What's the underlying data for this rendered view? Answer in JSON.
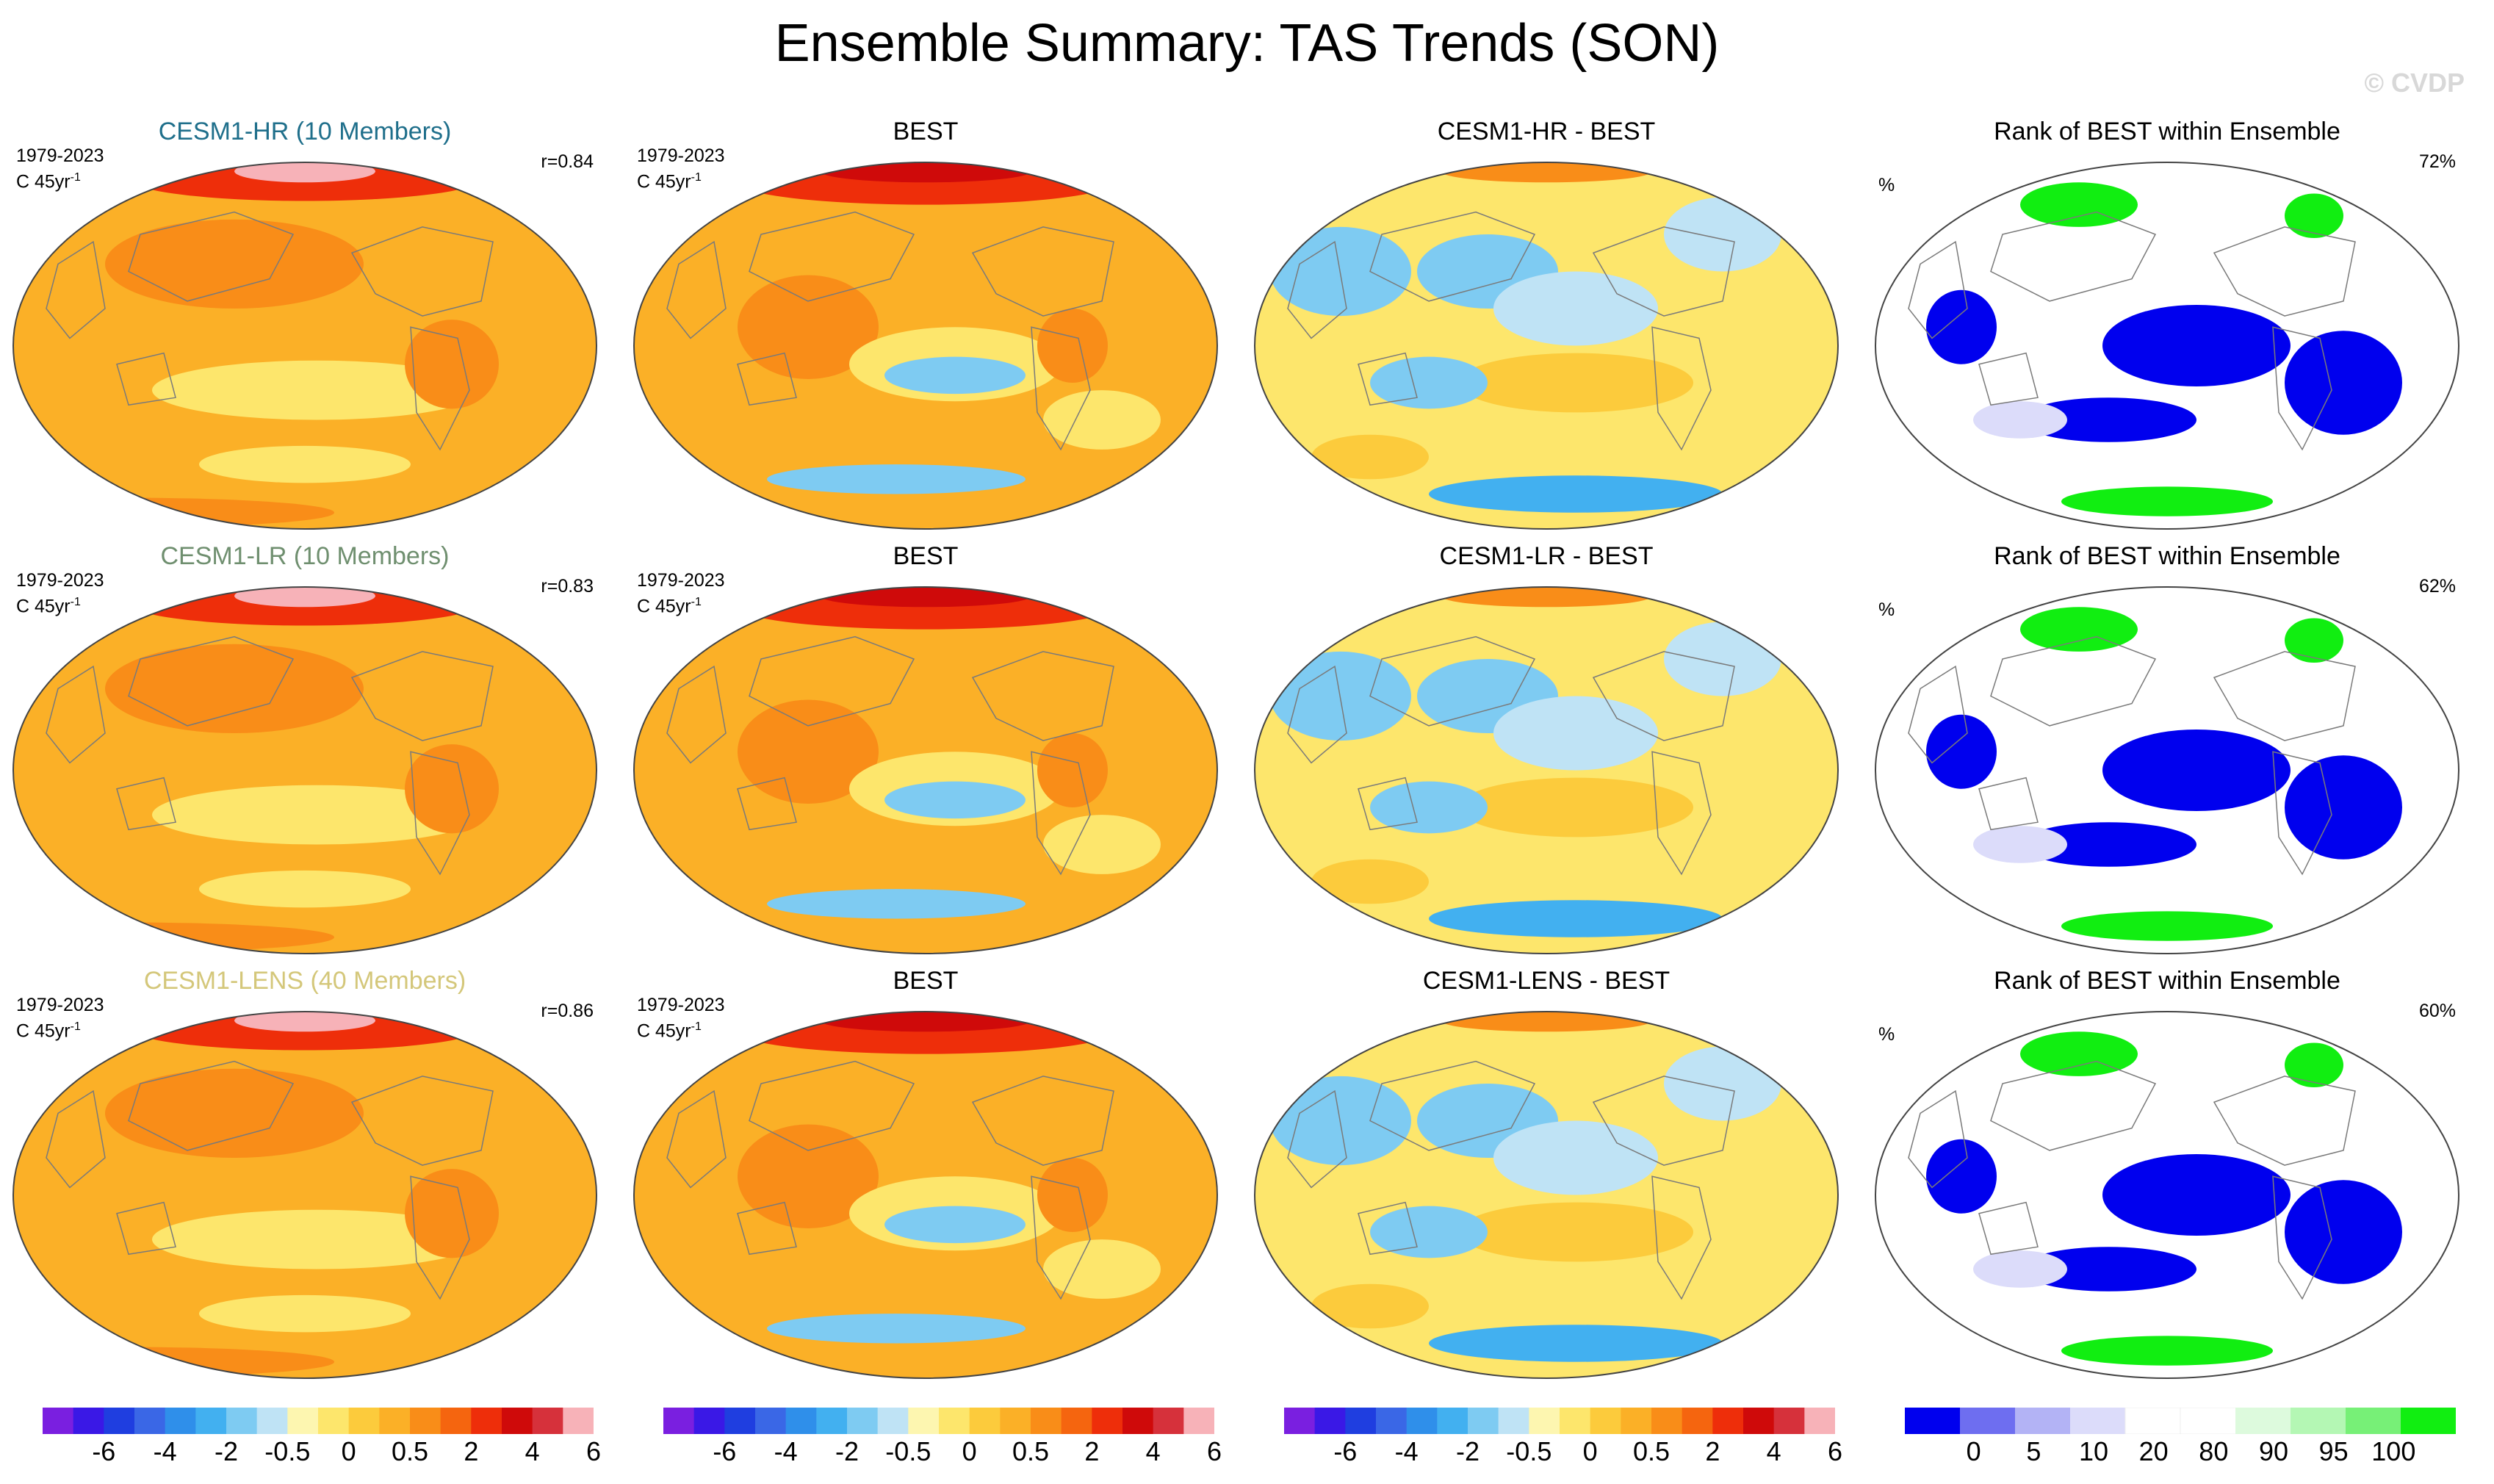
{
  "figure": {
    "title": "Ensemble Summary: TAS Trends (SON)",
    "copyright": "© CVDP"
  },
  "chart_data": {
    "type": "heatmap",
    "panels": [
      {
        "row": 0,
        "col": 0,
        "kind": "trend",
        "title": "CESM1-HR (10 Members)",
        "title_color": "#1f6f8b",
        "period": "1979-2023",
        "units": "C 45yr",
        "units_sup": "-1",
        "stat": "r=0.84"
      },
      {
        "row": 0,
        "col": 1,
        "kind": "obs",
        "title": "BEST",
        "period": "1979-2023",
        "units": "C 45yr",
        "units_sup": "-1"
      },
      {
        "row": 0,
        "col": 2,
        "kind": "diff",
        "title": "CESM1-HR - BEST"
      },
      {
        "row": 0,
        "col": 3,
        "kind": "rank",
        "title": "Rank of BEST within Ensemble",
        "units": "%",
        "stat": "72%"
      },
      {
        "row": 1,
        "col": 0,
        "kind": "trend",
        "title": "CESM1-LR (10 Members)",
        "title_color": "#6f8f6f",
        "period": "1979-2023",
        "units": "C 45yr",
        "units_sup": "-1",
        "stat": "r=0.83"
      },
      {
        "row": 1,
        "col": 1,
        "kind": "obs",
        "title": "BEST",
        "period": "1979-2023",
        "units": "C 45yr",
        "units_sup": "-1"
      },
      {
        "row": 1,
        "col": 2,
        "kind": "diff",
        "title": "CESM1-LR - BEST"
      },
      {
        "row": 1,
        "col": 3,
        "kind": "rank",
        "title": "Rank of BEST within Ensemble",
        "units": "%",
        "stat": "62%"
      },
      {
        "row": 2,
        "col": 0,
        "kind": "trend",
        "title": "CESM1-LENS (40 Members)",
        "title_color": "#d4c77a",
        "period": "1979-2023",
        "units": "C 45yr",
        "units_sup": "-1",
        "stat": "r=0.86"
      },
      {
        "row": 2,
        "col": 1,
        "kind": "obs",
        "title": "BEST",
        "period": "1979-2023",
        "units": "C 45yr",
        "units_sup": "-1"
      },
      {
        "row": 2,
        "col": 2,
        "kind": "diff",
        "title": "CESM1-LENS - BEST"
      },
      {
        "row": 2,
        "col": 3,
        "kind": "rank",
        "title": "Rank of BEST within Ensemble",
        "units": "%",
        "stat": "60%"
      }
    ],
    "colorbars": [
      {
        "kind": "trend",
        "colors": [
          "#7a1fe0",
          "#3a18e6",
          "#1f3ee0",
          "#3a67e6",
          "#2f8fea",
          "#42b0f0",
          "#7ecbf2",
          "#bfe3f5",
          "#fdf6b0",
          "#fde66c",
          "#fccb3c",
          "#fbb027",
          "#f98d18",
          "#f5650f",
          "#ee2e0a",
          "#cf0a0a",
          "#d6313b",
          "#f7b2b8"
        ],
        "labels": [
          "-6",
          "-4",
          "-2",
          "-0.5",
          "0",
          "0.5",
          "2",
          "4",
          "6"
        ]
      },
      {
        "kind": "trend",
        "colors": [
          "#7a1fe0",
          "#3a18e6",
          "#1f3ee0",
          "#3a67e6",
          "#2f8fea",
          "#42b0f0",
          "#7ecbf2",
          "#bfe3f5",
          "#fdf6b0",
          "#fde66c",
          "#fccb3c",
          "#fbb027",
          "#f98d18",
          "#f5650f",
          "#ee2e0a",
          "#cf0a0a",
          "#d6313b",
          "#f7b2b8"
        ],
        "labels": [
          "-6",
          "-4",
          "-2",
          "-0.5",
          "0",
          "0.5",
          "2",
          "4",
          "6"
        ]
      },
      {
        "kind": "trend",
        "colors": [
          "#7a1fe0",
          "#3a18e6",
          "#1f3ee0",
          "#3a67e6",
          "#2f8fea",
          "#42b0f0",
          "#7ecbf2",
          "#bfe3f5",
          "#fdf6b0",
          "#fde66c",
          "#fccb3c",
          "#fbb027",
          "#f98d18",
          "#f5650f",
          "#ee2e0a",
          "#cf0a0a",
          "#d6313b",
          "#f7b2b8"
        ],
        "labels": [
          "-6",
          "-4",
          "-2",
          "-0.5",
          "0",
          "0.5",
          "2",
          "4",
          "6"
        ]
      },
      {
        "kind": "rank",
        "colors": [
          "#0000ee",
          "#6e6ef0",
          "#b3b3f5",
          "#dcdcfa",
          "#ffffff",
          "#ffffff",
          "#ddfadd",
          "#b4f7b4",
          "#77f077",
          "#11ee11"
        ],
        "labels": [
          "0",
          "5",
          "10",
          "20",
          "80",
          "90",
          "95",
          "100"
        ]
      }
    ]
  }
}
